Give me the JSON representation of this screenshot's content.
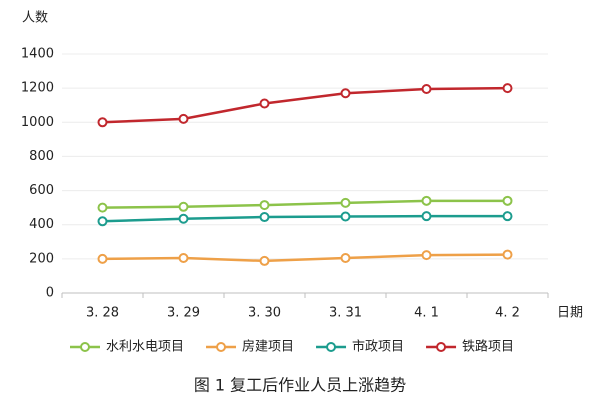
{
  "chart_data": {
    "type": "line",
    "title": "图 1  复工后作业人员上涨趋势",
    "y_label": "人数",
    "x_label": "日期",
    "categories": [
      "3. 28",
      "3. 29",
      "3. 30",
      "3. 31",
      "4. 1",
      "4. 2"
    ],
    "series": [
      {
        "name": "水利水电项目",
        "color": "#8cc34a",
        "values": [
          500,
          505,
          515,
          528,
          540,
          540
        ]
      },
      {
        "name": "房建项目",
        "color": "#eea048",
        "values": [
          200,
          205,
          188,
          205,
          222,
          225
        ]
      },
      {
        "name": "市政项目",
        "color": "#1c9c8e",
        "values": [
          420,
          435,
          445,
          448,
          450,
          450
        ]
      },
      {
        "name": "铁路项目",
        "color": "#c1272d",
        "values": [
          1000,
          1020,
          1110,
          1170,
          1195,
          1200
        ]
      }
    ],
    "ylim": [
      0,
      1400
    ],
    "yticks": [
      0,
      200,
      400,
      600,
      800,
      1000,
      1200,
      1400
    ],
    "grid": true,
    "legend": "bottom"
  }
}
